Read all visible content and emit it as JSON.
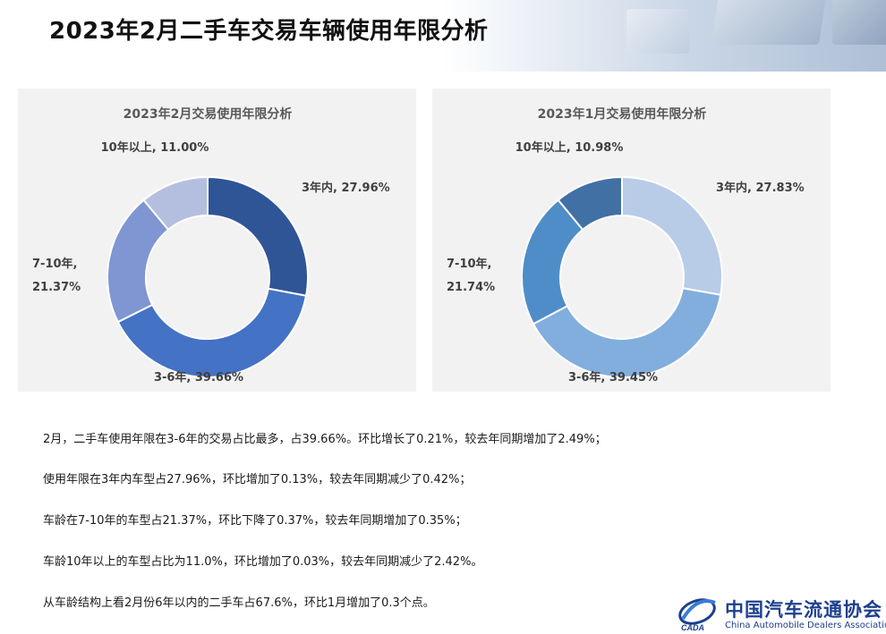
{
  "page": {
    "title": "2023年2月二手车交易车辆使用年限分析"
  },
  "chart_data": [
    {
      "type": "pie",
      "donut": true,
      "title": "2023年2月交易使用年限分析",
      "slices": [
        {
          "label": "3年内",
          "value": 27.96,
          "text": "27.96%",
          "color": "#2f5597"
        },
        {
          "label": "3-6年",
          "value": 39.66,
          "text": "39.66%",
          "color": "#4472c4"
        },
        {
          "label": "7-10年",
          "value": 21.37,
          "text": "21.37%",
          "color": "#7f96d3"
        },
        {
          "label": "10年以上",
          "value": 11.0,
          "text": "11.00%",
          "color": "#b4bfe0"
        }
      ]
    },
    {
      "type": "pie",
      "donut": true,
      "title": "2023年1月交易使用年限分析",
      "slices": [
        {
          "label": "3年内",
          "value": 27.83,
          "text": "27.83%",
          "color": "#b8cce8"
        },
        {
          "label": "3-6年",
          "value": 39.45,
          "text": "39.45%",
          "color": "#82aedd"
        },
        {
          "label": "7-10年",
          "value": 21.74,
          "text": "21.74%",
          "color": "#4f8dc8"
        },
        {
          "label": "10年以上",
          "value": 10.98,
          "text": "10.98%",
          "color": "#4170a5"
        }
      ]
    }
  ],
  "summary": [
    "2月，二手车使用年限在3-6年的交易占比最多，占39.66%。环比增长了0.21%，较去年同期增加了2.49%；",
    "使用年限在3年内车型占27.96%，环比增加了0.13%，较去年同期减少了0.42%；",
    "车龄在7-10年的车型占21.37%，环比下降了0.37%，较去年同期增加了0.35%；",
    "车龄10年以上的车型占比为11.0%，环比增加了0.03%，较去年同期减少了2.42%。",
    "从车龄结构上看2月份6年以内的二手车占67.6%，环比1月增加了0.3个点。"
  ],
  "logo": {
    "name_cn": "中国汽车流通协会",
    "name_en": "China Automobile Dealers Association",
    "mark_text": "CADA"
  }
}
